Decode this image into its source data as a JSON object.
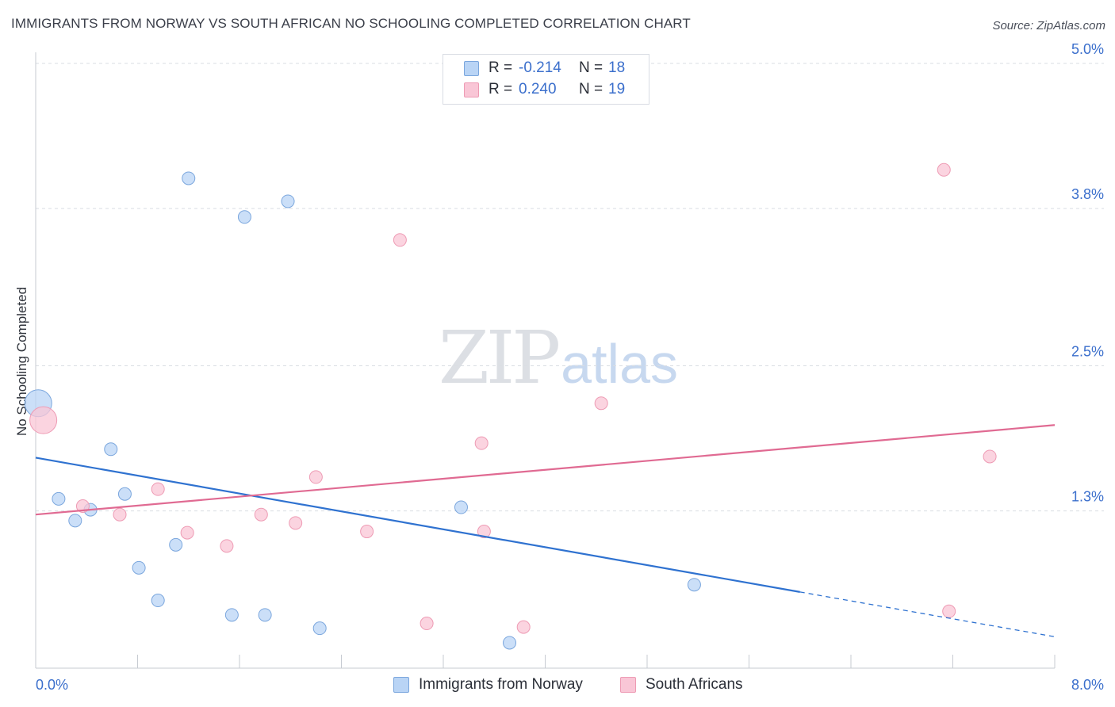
{
  "title": "IMMIGRANTS FROM NORWAY VS SOUTH AFRICAN NO SCHOOLING COMPLETED CORRELATION CHART",
  "source": "Source: ZipAtlas.com",
  "watermark": {
    "part1": "ZIP",
    "part2": "atlas"
  },
  "legend": {
    "rows": [
      {
        "r_label": "R =",
        "r_value": "-0.214",
        "n_label": "N =",
        "n_value": "18"
      },
      {
        "r_label": "R =",
        "r_value": "0.240",
        "n_label": "N =",
        "n_value": "19"
      }
    ]
  },
  "colors": {
    "norway_fill": "#b9d4f5",
    "norway_stroke": "#7aa6dd",
    "norway_line": "#2f72d0",
    "sa_fill": "#f9c6d6",
    "sa_stroke": "#ee9bb4",
    "sa_line": "#e06a92",
    "grid": "#d9dde3",
    "axis_text": "#3b6fcc"
  },
  "chart_data": {
    "type": "scatter",
    "title": "IMMIGRANTS FROM NORWAY VS SOUTH AFRICAN NO SCHOOLING COMPLETED CORRELATION CHART",
    "xlabel": "",
    "ylabel": "No Schooling Completed",
    "xlim": [
      0,
      8
    ],
    "ylim": [
      0.0,
      5.0
    ],
    "y_ticks": [
      {
        "value": 1.3,
        "label": "1.3%"
      },
      {
        "value": 2.5,
        "label": "2.5%"
      },
      {
        "value": 3.8,
        "label": "3.8%"
      },
      {
        "value": 5.0,
        "label": "5.0%"
      }
    ],
    "x_ticks_labeled": [
      {
        "value": 0.0,
        "label": "0.0%"
      },
      {
        "value": 8.0,
        "label": "8.0%"
      }
    ],
    "x_minor_ticks": [
      0.8,
      1.6,
      2.4,
      3.2,
      4.0,
      4.8,
      5.6,
      6.4,
      7.2
    ],
    "grid": true,
    "legend_position": "top-center",
    "series": [
      {
        "name": "Immigrants from Norway",
        "R": -0.214,
        "N": 18,
        "points": [
          {
            "x": 0.02,
            "y": 2.19,
            "big": true
          },
          {
            "x": 0.18,
            "y": 1.4
          },
          {
            "x": 0.31,
            "y": 1.22
          },
          {
            "x": 0.43,
            "y": 1.31
          },
          {
            "x": 0.59,
            "y": 1.81
          },
          {
            "x": 0.7,
            "y": 1.44
          },
          {
            "x": 0.81,
            "y": 0.83
          },
          {
            "x": 0.96,
            "y": 0.56
          },
          {
            "x": 1.1,
            "y": 1.02
          },
          {
            "x": 1.2,
            "y": 4.05
          },
          {
            "x": 1.54,
            "y": 0.44
          },
          {
            "x": 1.64,
            "y": 3.73
          },
          {
            "x": 1.8,
            "y": 0.44
          },
          {
            "x": 1.98,
            "y": 3.86
          },
          {
            "x": 2.23,
            "y": 0.33
          },
          {
            "x": 3.34,
            "y": 1.33
          },
          {
            "x": 3.72,
            "y": 0.21
          },
          {
            "x": 5.17,
            "y": 0.69
          }
        ],
        "trend": {
          "x0": 0.0,
          "y0": 1.74,
          "x1": 6.0,
          "y1": 0.63,
          "dash_to_x": 8.0,
          "dash_to_y": 0.26
        }
      },
      {
        "name": "South Africans",
        "R": 0.24,
        "N": 19,
        "points": [
          {
            "x": 0.06,
            "y": 2.05,
            "big": true
          },
          {
            "x": 0.37,
            "y": 1.34
          },
          {
            "x": 0.66,
            "y": 1.27
          },
          {
            "x": 0.96,
            "y": 1.48
          },
          {
            "x": 1.19,
            "y": 1.12
          },
          {
            "x": 1.5,
            "y": 1.01
          },
          {
            "x": 1.77,
            "y": 1.27
          },
          {
            "x": 2.04,
            "y": 1.2
          },
          {
            "x": 2.2,
            "y": 1.58
          },
          {
            "x": 2.6,
            "y": 1.13
          },
          {
            "x": 2.86,
            "y": 3.54
          },
          {
            "x": 3.07,
            "y": 0.37
          },
          {
            "x": 3.5,
            "y": 1.86
          },
          {
            "x": 3.52,
            "y": 1.13
          },
          {
            "x": 3.83,
            "y": 0.34
          },
          {
            "x": 4.44,
            "y": 2.19
          },
          {
            "x": 7.13,
            "y": 4.12
          },
          {
            "x": 7.17,
            "y": 0.47
          },
          {
            "x": 7.49,
            "y": 1.75
          }
        ],
        "trend": {
          "x0": 0.0,
          "y0": 1.27,
          "x1": 8.0,
          "y1": 2.01
        }
      }
    ]
  },
  "bottom_legend": {
    "items": [
      {
        "label": "Immigrants from Norway"
      },
      {
        "label": "South Africans"
      }
    ]
  }
}
